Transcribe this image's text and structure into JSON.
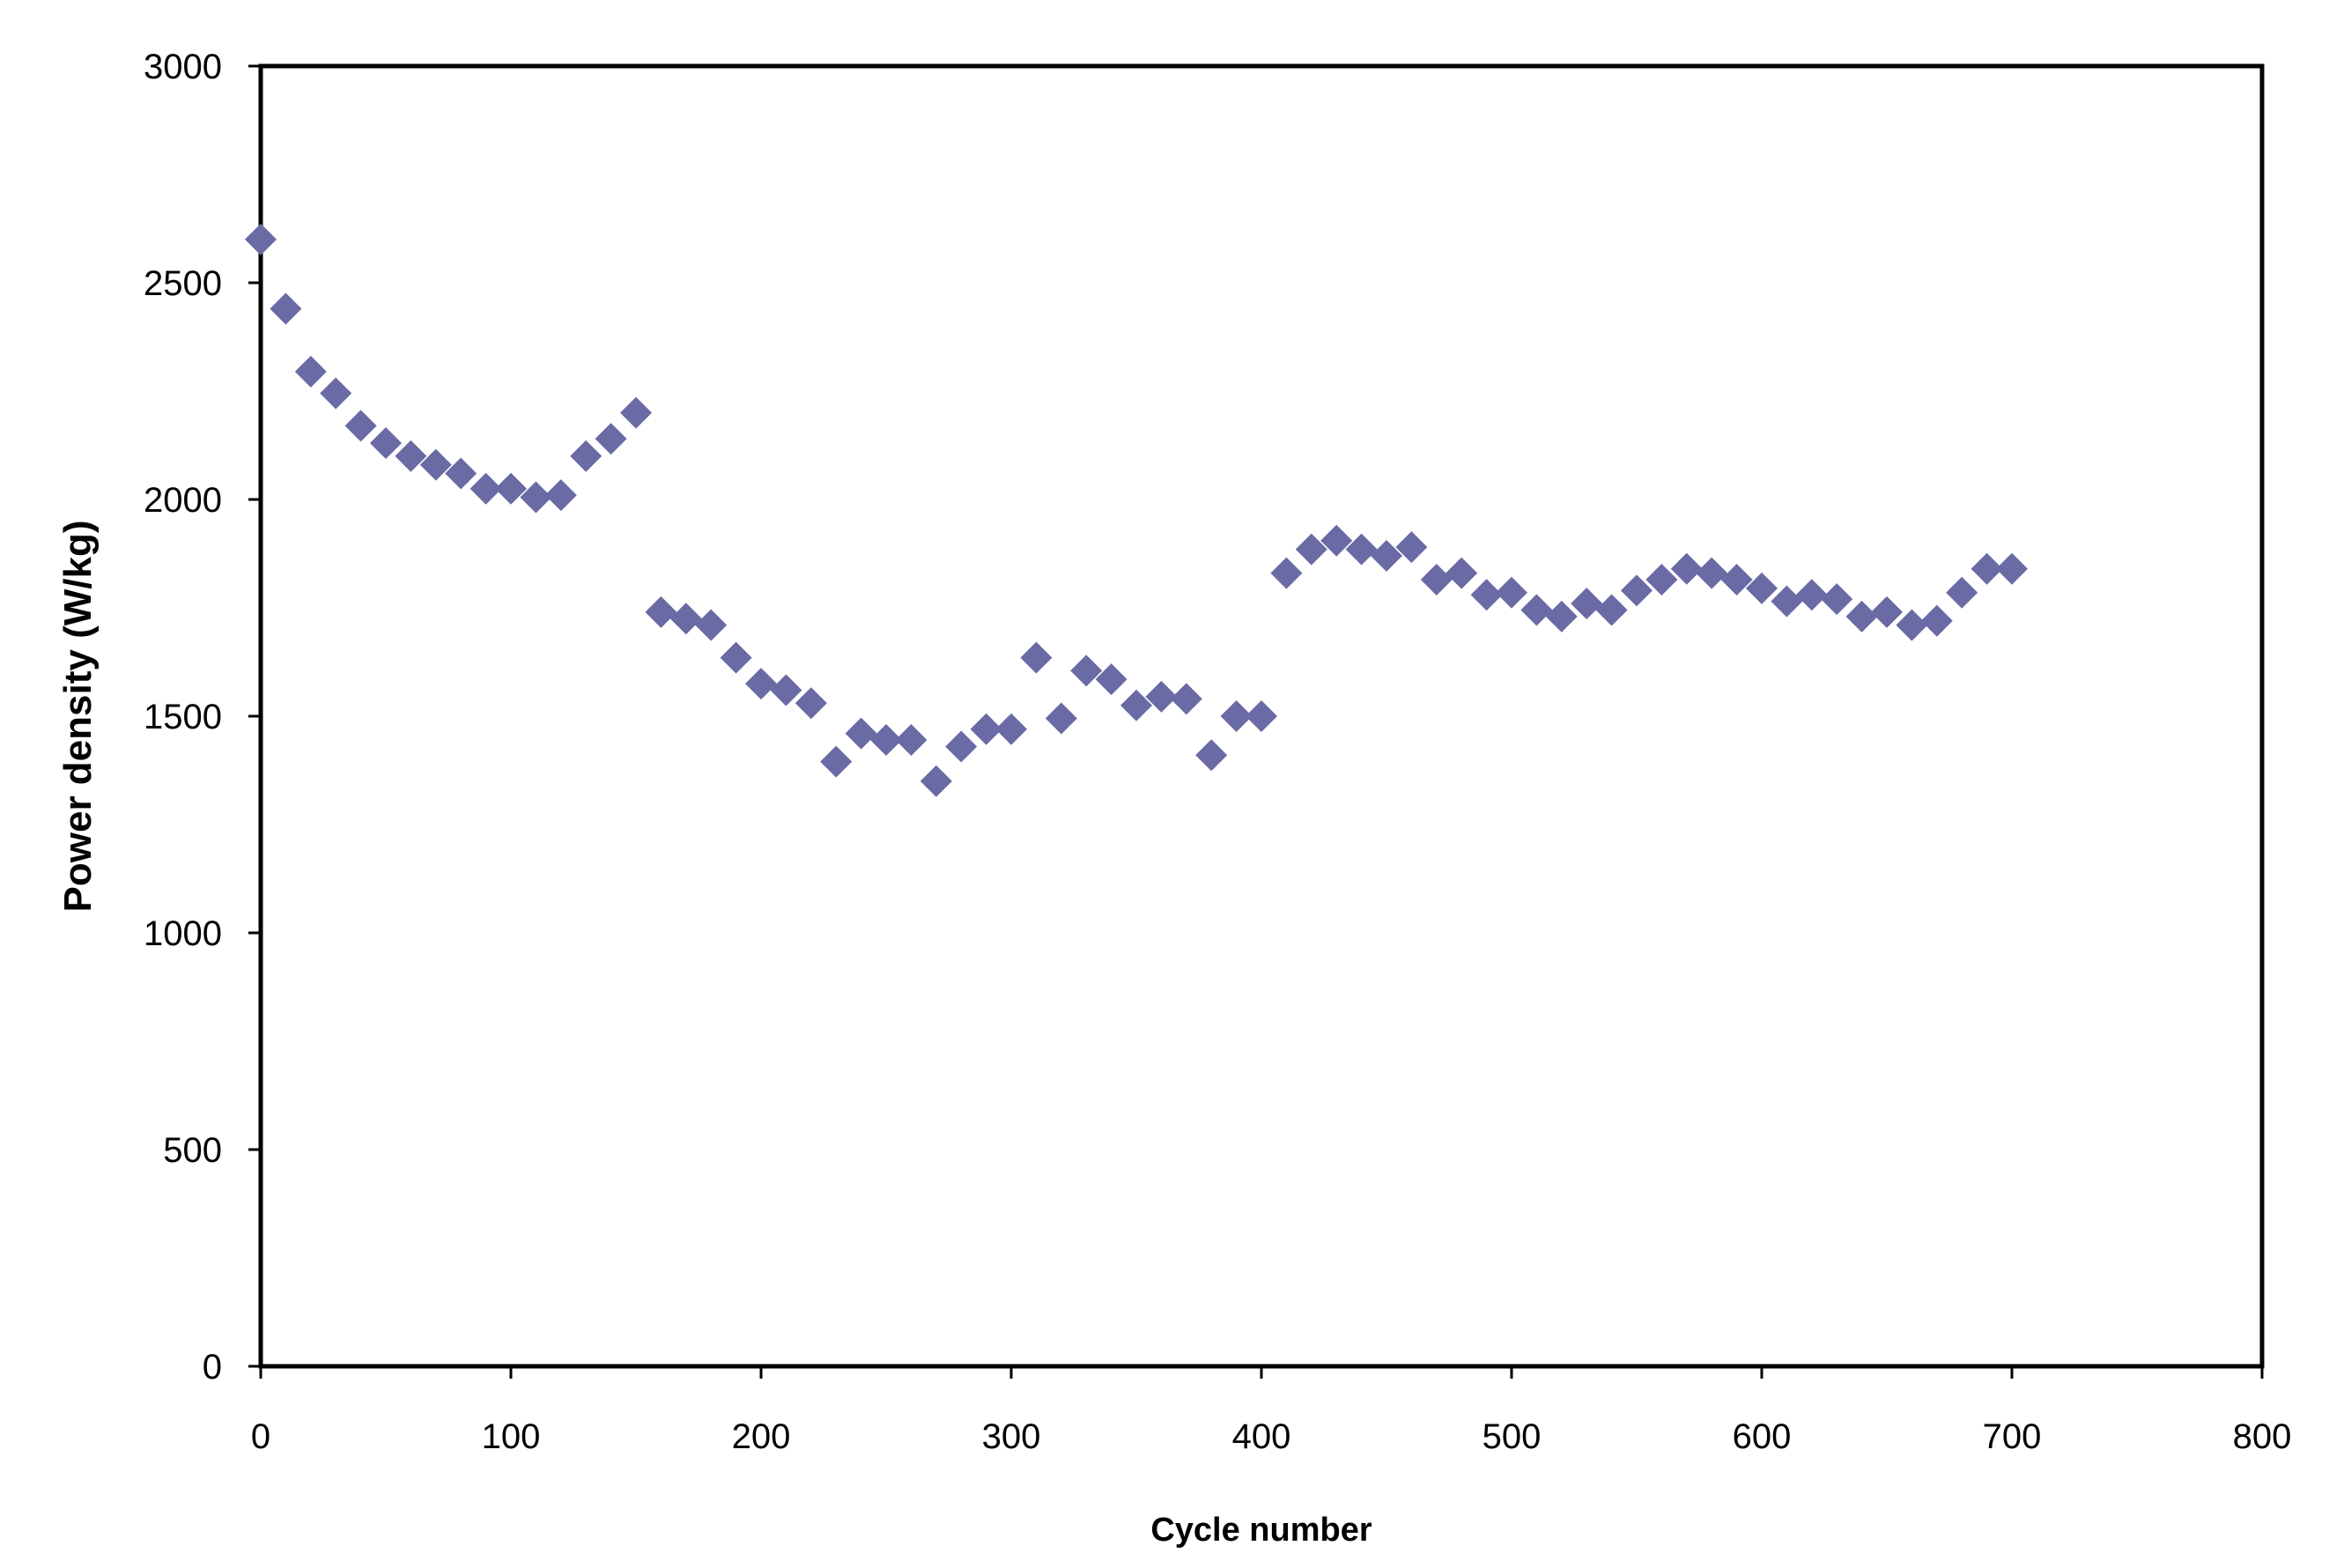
{
  "chart_data": {
    "type": "scatter",
    "title": "",
    "xlabel": "Cycle number",
    "ylabel": "Power density (W/kg)",
    "xlim": [
      0,
      800
    ],
    "ylim": [
      0,
      3000
    ],
    "x_ticks": [
      "0",
      "100",
      "200",
      "300",
      "400",
      "500",
      "600",
      "700",
      "800"
    ],
    "y_ticks": [
      "0",
      "500",
      "1000",
      "1500",
      "2000",
      "2500",
      "3000"
    ],
    "grid": false,
    "legend": "none",
    "marker": "diamond",
    "marker_color": "#6a6aa5",
    "points": [
      [
        0,
        2600
      ],
      [
        10,
        2440
      ],
      [
        20,
        2295
      ],
      [
        30,
        2245
      ],
      [
        40,
        2170
      ],
      [
        50,
        2130
      ],
      [
        60,
        2100
      ],
      [
        70,
        2080
      ],
      [
        80,
        2060
      ],
      [
        90,
        2025
      ],
      [
        100,
        2025
      ],
      [
        110,
        2005
      ],
      [
        120,
        2010
      ],
      [
        130,
        2100
      ],
      [
        140,
        2140
      ],
      [
        150,
        2200
      ],
      [
        160,
        1740
      ],
      [
        170,
        1725
      ],
      [
        180,
        1710
      ],
      [
        190,
        1635
      ],
      [
        200,
        1575
      ],
      [
        210,
        1560
      ],
      [
        220,
        1530
      ],
      [
        230,
        1395
      ],
      [
        240,
        1460
      ],
      [
        250,
        1445
      ],
      [
        260,
        1445
      ],
      [
        270,
        1350
      ],
      [
        280,
        1430
      ],
      [
        290,
        1470
      ],
      [
        300,
        1470
      ],
      [
        310,
        1635
      ],
      [
        320,
        1495
      ],
      [
        330,
        1605
      ],
      [
        340,
        1585
      ],
      [
        350,
        1525
      ],
      [
        360,
        1545
      ],
      [
        370,
        1540
      ],
      [
        380,
        1410
      ],
      [
        390,
        1500
      ],
      [
        400,
        1500
      ],
      [
        410,
        1830
      ],
      [
        420,
        1885
      ],
      [
        430,
        1905
      ],
      [
        440,
        1885
      ],
      [
        450,
        1870
      ],
      [
        460,
        1890
      ],
      [
        470,
        1815
      ],
      [
        480,
        1830
      ],
      [
        490,
        1780
      ],
      [
        500,
        1785
      ],
      [
        510,
        1745
      ],
      [
        520,
        1730
      ],
      [
        530,
        1760
      ],
      [
        540,
        1745
      ],
      [
        550,
        1790
      ],
      [
        560,
        1815
      ],
      [
        570,
        1840
      ],
      [
        580,
        1830
      ],
      [
        590,
        1815
      ],
      [
        600,
        1795
      ],
      [
        610,
        1765
      ],
      [
        620,
        1780
      ],
      [
        630,
        1770
      ],
      [
        640,
        1730
      ],
      [
        650,
        1740
      ],
      [
        660,
        1710
      ],
      [
        670,
        1720
      ],
      [
        680,
        1785
      ],
      [
        690,
        1840
      ],
      [
        700,
        1840
      ]
    ]
  }
}
